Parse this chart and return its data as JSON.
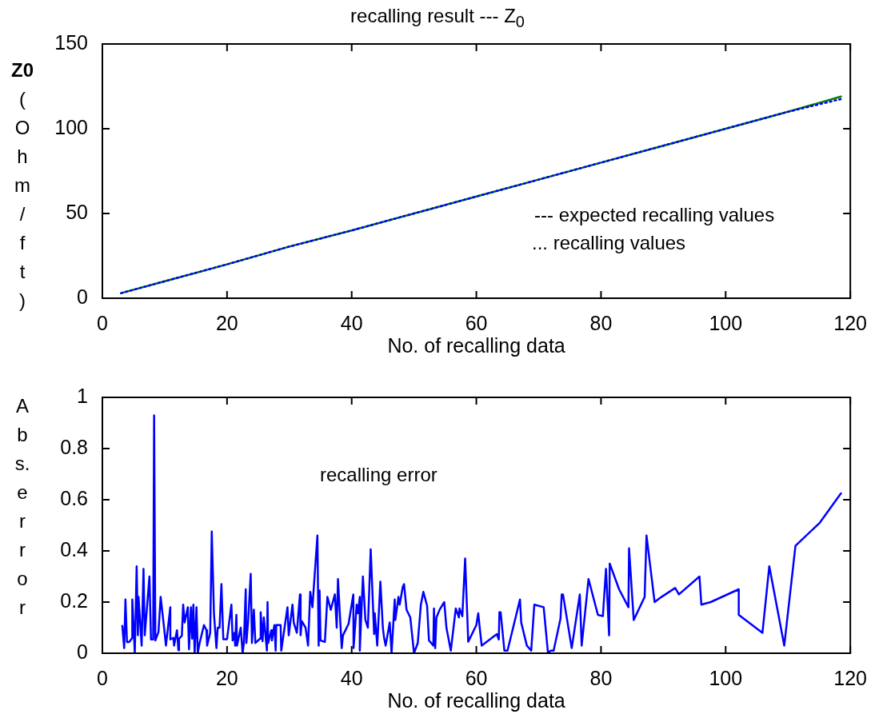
{
  "chart_data": [
    {
      "type": "line",
      "title": "recalling result --- Z$_{0}$",
      "xlabel": "No. of recalling data",
      "ylabel": "Z0 (Ohm/ft)",
      "xlim": [
        0,
        120
      ],
      "xticks": [
        0,
        20,
        40,
        60,
        80,
        100,
        120
      ],
      "ylim": [
        0,
        150
      ],
      "yticks": [
        0,
        50,
        100,
        150
      ],
      "grid": false,
      "marker": "none",
      "annotations": [
        "---  expected recalling values",
        "...  recalling values"
      ],
      "series": [
        {
          "color": "#0000ff",
          "line_style": "dotted",
          "x": [
            3,
            10,
            20,
            30,
            40,
            50,
            60,
            70,
            80,
            90,
            100,
            110,
            118.5
          ],
          "values": [
            3,
            10,
            20,
            30.5,
            40,
            50,
            60,
            70,
            80,
            90,
            100,
            110,
            117.5
          ]
        },
        {
          "color": "#008000",
          "line_style": "solid",
          "x": [
            3,
            10,
            20,
            30,
            40,
            50,
            60,
            70,
            80,
            90,
            100,
            110,
            118.5
          ],
          "values": [
            3,
            10,
            20,
            30.5,
            40,
            50,
            60,
            70,
            80,
            90,
            100,
            110,
            119
          ]
        }
      ]
    },
    {
      "type": "line",
      "xlabel": "No. of recalling data",
      "ylabel": "Abs.error",
      "xlim": [
        0,
        120
      ],
      "xticks": [
        0,
        20,
        40,
        60,
        80,
        100,
        120
      ],
      "ylim": [
        0,
        1
      ],
      "yticks": [
        0,
        0.2,
        0.4,
        0.6,
        0.8,
        1
      ],
      "grid": false,
      "marker": "none",
      "annotations": [
        "recalling error"
      ],
      "series": [
        {
          "color": "#0000ff",
          "line_style": "solid",
          "x": [
            3.2,
            3.5,
            3.7,
            3.95,
            4.3,
            4.8,
            4.8,
            5.2,
            5.5,
            5.7,
            5.8,
            6.3,
            6.6,
            6.8,
            7.55,
            7.8,
            8.15,
            8.3,
            8.5,
            9.0,
            9.35,
            9.9,
            10.2,
            10.9,
            10.9,
            11.4,
            11.5,
            11.97,
            12.2,
            12.3,
            12.75,
            12.96,
            13.2,
            13.7,
            13.9,
            14.2,
            14.4,
            14.6,
            14.8,
            15.1,
            15.3,
            15.6,
            16.3,
            16.7,
            16.8,
            17.3,
            17.55,
            17.9,
            18.3,
            18.5,
            18.8,
            19.1,
            19.4,
            20.0,
            20.7,
            20.9,
            21.2,
            21.3,
            21.5,
            21.6,
            22.2,
            22.5,
            22.7,
            23.0,
            23.1,
            23.4,
            23.8,
            24.0,
            24.3,
            24.55,
            25.3,
            25.4,
            25.7,
            25.9,
            26.4,
            26.5,
            26.6,
            27.1,
            27.2,
            27.6,
            27.8,
            27.9,
            28.6,
            28.7,
            29.7,
            29.9,
            30.5,
            30.7,
            31.2,
            31.7,
            31.8,
            32.0,
            32.6,
            33.0,
            33.35,
            33.7,
            34.5,
            34.7,
            34.85,
            35.0,
            35.7,
            36.1,
            36.65,
            37.3,
            37.6,
            37.8,
            38.4,
            38.6,
            39.5,
            40.26,
            40.3,
            40.8,
            41.0,
            41.3,
            41.3,
            41.8,
            42.2,
            42.6,
            43.05,
            43.6,
            43.7,
            44.1,
            44.6,
            45.0,
            45.2,
            45.45,
            46.1,
            46.4,
            46.9,
            47.0,
            47.5,
            47.7,
            48.2,
            48.4,
            48.8,
            49.4,
            50.0,
            50.6,
            51.1,
            51.5,
            52.1,
            52.4,
            53.1,
            53.2,
            53.4,
            53.6,
            54.1,
            54.85,
            55.2,
            55.9,
            56.7,
            57.2,
            57.3,
            57.75,
            58.2,
            58.7,
            60.0,
            60.3,
            60.85,
            63.3,
            63.6,
            63.7,
            63.9,
            64.5,
            65.0,
            67.0,
            67.2,
            68.1,
            68.8,
            69.3,
            70.8,
            71.5,
            71.9,
            72.4,
            73.5,
            73.7,
            73.9,
            75.3,
            76.6,
            76.9,
            78.0,
            79.5,
            80.3,
            80.8,
            81.3,
            81.4,
            82.9,
            84.4,
            84.5,
            85.25,
            87.0,
            87.3,
            88.6,
            89.7,
            91.9,
            92.5,
            95.8,
            96.1,
            97.6,
            102.1,
            102.1,
            105.9,
            107.0,
            109.4,
            111.2,
            115.1,
            118.5
          ],
          "values": [
            0.107,
            0.02,
            0.21,
            0.044,
            0.044,
            0.06,
            0.21,
            0,
            0.34,
            0.07,
            0.22,
            0.03,
            0.33,
            0.07,
            0.3,
            0.054,
            0.054,
            0.93,
            0.05,
            0.083,
            0.22,
            0.1,
            0.03,
            0.18,
            0.054,
            0.06,
            0.03,
            0.09,
            0.012,
            0.057,
            0.068,
            0.19,
            0.12,
            0.18,
            0.016,
            0.18,
            0.057,
            0.19,
            0,
            0.18,
            0,
            0.04,
            0.11,
            0.09,
            0.03,
            0.08,
            0.476,
            0.156,
            0.02,
            0.1,
            0.1,
            0.27,
            0.055,
            0.055,
            0.19,
            0.05,
            0.08,
            0.03,
            0.15,
            0.03,
            0.1,
            0,
            0.04,
            0.25,
            0.04,
            0.13,
            0.31,
            0.04,
            0.17,
            0.04,
            0.057,
            0.16,
            0.047,
            0.14,
            0.01,
            0.2,
            0.04,
            0.09,
            0.05,
            0.11,
            0.01,
            0.11,
            0.11,
            0.01,
            0.18,
            0.07,
            0.19,
            0.12,
            0.08,
            0.23,
            0.07,
            0.125,
            0.1,
            0.03,
            0.24,
            0.18,
            0.46,
            0.03,
            0.245,
            0.05,
            0.044,
            0.22,
            0.17,
            0.23,
            0.1,
            0.29,
            0.02,
            0.07,
            0.115,
            0.23,
            0.02,
            0.19,
            0.156,
            0.22,
            0.01,
            0.3,
            0.13,
            0.1,
            0.406,
            0.075,
            0.156,
            0.03,
            0.28,
            0.1,
            0.06,
            0.03,
            0.12,
            0,
            0.21,
            0.13,
            0.22,
            0.19,
            0.26,
            0.27,
            0.17,
            0.14,
            0,
            0.04,
            0.19,
            0.24,
            0.185,
            0.05,
            0.03,
            0.175,
            0.02,
            0.14,
            0.17,
            0.2,
            0.1,
            0.01,
            0.175,
            0.14,
            0.175,
            0.145,
            0.37,
            0.045,
            0.11,
            0.156,
            0.03,
            0.075,
            0.054,
            0.16,
            0.16,
            0.01,
            0.01,
            0.21,
            0.12,
            0.03,
            0.01,
            0.19,
            0.18,
            0,
            0.01,
            0.01,
            0.135,
            0.23,
            0.23,
            0.02,
            0.23,
            0.03,
            0.29,
            0.15,
            0.145,
            0.33,
            0.07,
            0.35,
            0.25,
            0.18,
            0.41,
            0.13,
            0.22,
            0.46,
            0.2,
            0.22,
            0.255,
            0.23,
            0.3,
            0.19,
            0.2,
            0.25,
            0.15,
            0.08,
            0.34,
            0.03,
            0.42,
            0.51,
            0.625
          ]
        }
      ]
    }
  ]
}
